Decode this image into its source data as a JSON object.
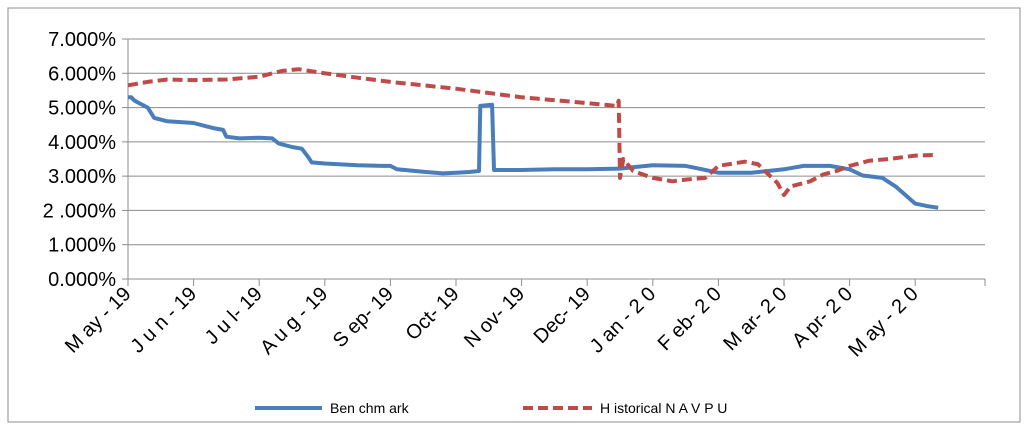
{
  "chart_data": {
    "type": "line",
    "title": "",
    "xlabel": "",
    "ylabel": "",
    "ylim": [
      0,
      7
    ],
    "y_ticks": [
      "0.000%",
      "1.000%",
      "2 .000%",
      "3.000%",
      "4.000%",
      "5.000%",
      "6.000%",
      "7.000%"
    ],
    "x_ticks": [
      "M ay - 19",
      "J u n - 19",
      "J u l- 19",
      "A u g - 19",
      "S ep- 19",
      "Oct- 19",
      "N ov- 19",
      "Dec- 19",
      "J an - 2 0",
      "F eb- 2 0",
      "M ar- 2 0",
      "A pr- 2 0",
      "M ay - 2 0"
    ],
    "grid": "horizontal",
    "legend_position": "bottom",
    "x_unit": "months from May 2019",
    "series": [
      {
        "name": "Ben chm ark",
        "color": "#4a7ebb",
        "style": "solid",
        "points": [
          [
            0,
            5.3
          ],
          [
            0.05,
            5.3
          ],
          [
            0.1,
            5.2
          ],
          [
            0.2,
            5.1
          ],
          [
            0.3,
            5.0
          ],
          [
            0.4,
            4.7
          ],
          [
            0.6,
            4.6
          ],
          [
            1.0,
            4.55
          ],
          [
            1.2,
            4.45
          ],
          [
            1.3,
            4.4
          ],
          [
            1.45,
            4.35
          ],
          [
            1.5,
            4.15
          ],
          [
            1.7,
            4.1
          ],
          [
            2.0,
            4.12
          ],
          [
            2.2,
            4.1
          ],
          [
            2.3,
            3.95
          ],
          [
            2.5,
            3.85
          ],
          [
            2.65,
            3.8
          ],
          [
            2.75,
            3.55
          ],
          [
            2.8,
            3.4
          ],
          [
            3.0,
            3.37
          ],
          [
            3.5,
            3.32
          ],
          [
            3.9,
            3.3
          ],
          [
            4.0,
            3.3
          ],
          [
            4.1,
            3.2
          ],
          [
            4.5,
            3.13
          ],
          [
            4.8,
            3.08
          ],
          [
            5.0,
            3.1
          ],
          [
            5.2,
            3.12
          ],
          [
            5.35,
            3.15
          ],
          [
            5.37,
            5.05
          ],
          [
            5.55,
            5.08
          ],
          [
            5.58,
            3.18
          ],
          [
            6.0,
            3.18
          ],
          [
            6.5,
            3.2
          ],
          [
            7.0,
            3.2
          ],
          [
            7.5,
            3.22
          ],
          [
            8.0,
            3.32
          ],
          [
            8.5,
            3.3
          ],
          [
            8.7,
            3.22
          ],
          [
            9.0,
            3.1
          ],
          [
            9.5,
            3.1
          ],
          [
            10.0,
            3.2
          ],
          [
            10.3,
            3.3
          ],
          [
            10.7,
            3.3
          ],
          [
            11.0,
            3.2
          ],
          [
            11.2,
            3.02
          ],
          [
            11.5,
            2.95
          ],
          [
            11.7,
            2.7
          ],
          [
            11.85,
            2.45
          ],
          [
            12.0,
            2.2
          ],
          [
            12.2,
            2.12
          ],
          [
            12.35,
            2.08
          ]
        ]
      },
      {
        "name": "H istorical N A V P U",
        "color": "#be4b48",
        "style": "dashed",
        "points": [
          [
            0,
            5.65
          ],
          [
            0.3,
            5.75
          ],
          [
            0.6,
            5.82
          ],
          [
            1.0,
            5.8
          ],
          [
            1.5,
            5.82
          ],
          [
            2.0,
            5.9
          ],
          [
            2.35,
            6.07
          ],
          [
            2.6,
            6.12
          ],
          [
            3.0,
            6.0
          ],
          [
            3.5,
            5.87
          ],
          [
            4.0,
            5.75
          ],
          [
            5.0,
            5.55
          ],
          [
            6.0,
            5.3
          ],
          [
            7.0,
            5.13
          ],
          [
            7.45,
            5.05
          ],
          [
            7.48,
            5.2
          ],
          [
            7.5,
            2.95
          ],
          [
            7.55,
            3.5
          ],
          [
            7.7,
            3.15
          ],
          [
            8.0,
            2.95
          ],
          [
            8.3,
            2.85
          ],
          [
            8.5,
            2.9
          ],
          [
            8.8,
            2.95
          ],
          [
            9.0,
            3.3
          ],
          [
            9.4,
            3.42
          ],
          [
            9.6,
            3.35
          ],
          [
            9.9,
            2.8
          ],
          [
            10.0,
            2.45
          ],
          [
            10.1,
            2.7
          ],
          [
            10.4,
            2.85
          ],
          [
            10.6,
            3.05
          ],
          [
            10.8,
            3.15
          ],
          [
            11.0,
            3.3
          ],
          [
            11.3,
            3.45
          ],
          [
            11.6,
            3.5
          ],
          [
            12.0,
            3.6
          ],
          [
            12.3,
            3.62
          ]
        ]
      }
    ]
  }
}
